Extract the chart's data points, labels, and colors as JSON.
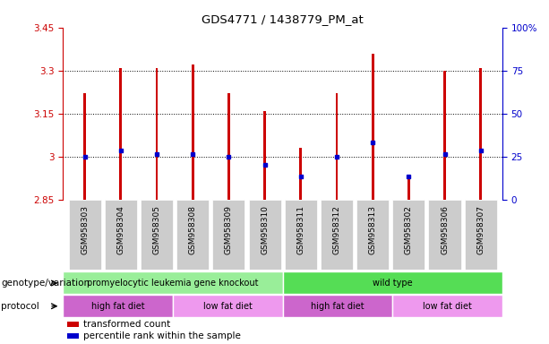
{
  "title": "GDS4771 / 1438779_PM_at",
  "samples": [
    "GSM958303",
    "GSM958304",
    "GSM958305",
    "GSM958308",
    "GSM958309",
    "GSM958310",
    "GSM958311",
    "GSM958312",
    "GSM958313",
    "GSM958302",
    "GSM958306",
    "GSM958307"
  ],
  "bar_bottom": 2.85,
  "bar_tops": [
    3.22,
    3.31,
    3.31,
    3.32,
    3.22,
    3.16,
    3.03,
    3.22,
    3.36,
    2.93,
    3.3,
    3.31
  ],
  "blue_dots": [
    3.0,
    3.02,
    3.01,
    3.01,
    3.0,
    2.97,
    2.93,
    3.0,
    3.05,
    2.93,
    3.01,
    3.02
  ],
  "ylim": [
    2.85,
    3.45
  ],
  "yticks_left": [
    2.85,
    3.0,
    3.15,
    3.3,
    3.45
  ],
  "ytick_left_labels": [
    "2.85",
    "3",
    "3.15",
    "3.3",
    "3.45"
  ],
  "yticks_right": [
    0,
    25,
    50,
    75,
    100
  ],
  "ytick_right_labels": [
    "0",
    "25",
    "50",
    "75",
    "100%"
  ],
  "grid_lines": [
    3.0,
    3.15,
    3.3
  ],
  "bar_color": "#cc0000",
  "dot_color": "#0000cc",
  "axis_left_color": "#cc0000",
  "axis_right_color": "#0000cc",
  "plot_bg": "#ffffff",
  "tick_label_bg": "#cccccc",
  "genotype_groups": [
    {
      "label": "promyelocytic leukemia gene knockout",
      "start": 0,
      "end": 6,
      "color": "#99ee99"
    },
    {
      "label": "wild type",
      "start": 6,
      "end": 12,
      "color": "#55dd55"
    }
  ],
  "protocol_groups": [
    {
      "label": "high fat diet",
      "start": 0,
      "end": 3,
      "color": "#cc66cc"
    },
    {
      "label": "low fat diet",
      "start": 3,
      "end": 6,
      "color": "#ee99ee"
    },
    {
      "label": "high fat diet",
      "start": 6,
      "end": 9,
      "color": "#cc66cc"
    },
    {
      "label": "low fat diet",
      "start": 9,
      "end": 12,
      "color": "#ee99ee"
    }
  ],
  "legend_items": [
    {
      "label": "transformed count",
      "color": "#cc0000"
    },
    {
      "label": "percentile rank within the sample",
      "color": "#0000cc"
    }
  ],
  "genotype_label": "genotype/variation",
  "protocol_label": "protocol",
  "bar_width": 0.07
}
